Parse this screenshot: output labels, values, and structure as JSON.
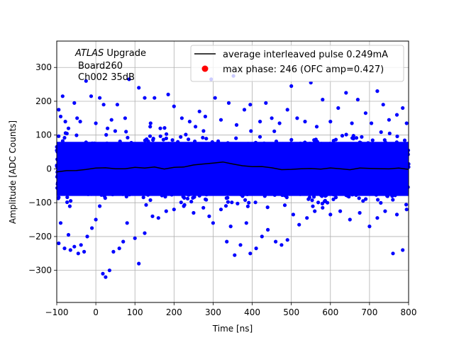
{
  "chart_data": {
    "type": "scatter",
    "title": "",
    "xlabel": "Time [ns]",
    "ylabel": "Amplitude [ADC Counts]",
    "xlim": [
      -100,
      800
    ],
    "ylim": [
      -395,
      378
    ],
    "xticks": [
      -100,
      0,
      100,
      200,
      300,
      400,
      500,
      600,
      700,
      800
    ],
    "yticks": [
      -300,
      -200,
      -100,
      0,
      100,
      200,
      300
    ],
    "xtick_labels": [
      "−100",
      "0",
      "100",
      "200",
      "300",
      "400",
      "500",
      "600",
      "700",
      "800"
    ],
    "ytick_labels": [
      "−300",
      "−200",
      "−100",
      "0",
      "100",
      "200",
      "300"
    ],
    "grid": true,
    "legend_position": "top-right",
    "annotation": {
      "line1_italic": "ATLAS",
      "line1_rest": " Upgrade",
      "line2": "Board260",
      "line3": "Ch002 35dB"
    },
    "colors": {
      "scatter": "#0000ff",
      "line": "#000000",
      "max_phase": "#ff0000"
    },
    "series": [
      {
        "name": "average interleaved pulse 0.249mA",
        "kind": "line",
        "x": [
          -100,
          -75,
          -50,
          -25,
          0,
          25,
          50,
          75,
          100,
          125,
          150,
          175,
          200,
          225,
          250,
          275,
          300,
          325,
          350,
          375,
          400,
          425,
          450,
          475,
          500,
          525,
          550,
          575,
          600,
          625,
          650,
          675,
          700,
          725,
          750,
          775,
          800
        ],
        "y": [
          -8,
          -6,
          -4,
          -2,
          0,
          2,
          1,
          3,
          4,
          5,
          3,
          2,
          4,
          6,
          9,
          13,
          18,
          19,
          16,
          12,
          8,
          4,
          1,
          0,
          -1,
          0,
          -1,
          -2,
          0,
          1,
          -1,
          0,
          1,
          0,
          1,
          0,
          1
        ]
      },
      {
        "name": "max phase: 246 (OFC amp=0.427)",
        "kind": "marker",
        "x": [],
        "y": []
      },
      {
        "name": "",
        "kind": "scatter",
        "x_range": [
          -100,
          800
        ],
        "core_y_range": [
          -80,
          80
        ],
        "outliers": [
          [
            -95,
            175
          ],
          [
            -90,
            155
          ],
          [
            -85,
            215
          ],
          [
            -78,
            140
          ],
          [
            -70,
            120
          ],
          [
            -55,
            195
          ],
          [
            -48,
            150
          ],
          [
            -40,
            140
          ],
          [
            -25,
            260
          ],
          [
            -12,
            215
          ],
          [
            0,
            135
          ],
          [
            10,
            210
          ],
          [
            20,
            190
          ],
          [
            30,
            120
          ],
          [
            40,
            145
          ],
          [
            55,
            190
          ],
          [
            75,
            150
          ],
          [
            85,
            265
          ],
          [
            110,
            240
          ],
          [
            125,
            210
          ],
          [
            140,
            135
          ],
          [
            150,
            210
          ],
          [
            165,
            120
          ],
          [
            185,
            220
          ],
          [
            200,
            185
          ],
          [
            220,
            150
          ],
          [
            240,
            140
          ],
          [
            255,
            125
          ],
          [
            265,
            170
          ],
          [
            280,
            155
          ],
          [
            295,
            265
          ],
          [
            305,
            210
          ],
          [
            320,
            145
          ],
          [
            340,
            195
          ],
          [
            352,
            275
          ],
          [
            360,
            130
          ],
          [
            380,
            175
          ],
          [
            395,
            190
          ],
          [
            420,
            140
          ],
          [
            435,
            195
          ],
          [
            450,
            150
          ],
          [
            470,
            135
          ],
          [
            490,
            175
          ],
          [
            500,
            245
          ],
          [
            515,
            150
          ],
          [
            535,
            140
          ],
          [
            550,
            255
          ],
          [
            565,
            125
          ],
          [
            580,
            205
          ],
          [
            600,
            140
          ],
          [
            620,
            180
          ],
          [
            640,
            225
          ],
          [
            655,
            135
          ],
          [
            670,
            205
          ],
          [
            690,
            165
          ],
          [
            705,
            135
          ],
          [
            720,
            230
          ],
          [
            735,
            190
          ],
          [
            750,
            145
          ],
          [
            770,
            160
          ],
          [
            785,
            180
          ],
          [
            795,
            135
          ],
          [
            -95,
            -220
          ],
          [
            -90,
            -160
          ],
          [
            -80,
            -235
          ],
          [
            -70,
            -195
          ],
          [
            -65,
            -240
          ],
          [
            -55,
            -230
          ],
          [
            -45,
            -250
          ],
          [
            -38,
            -225
          ],
          [
            -30,
            -245
          ],
          [
            -22,
            -200
          ],
          [
            -10,
            -175
          ],
          [
            0,
            -150
          ],
          [
            10,
            -110
          ],
          [
            18,
            -310
          ],
          [
            25,
            -320
          ],
          [
            35,
            -300
          ],
          [
            45,
            -245
          ],
          [
            60,
            -235
          ],
          [
            70,
            -215
          ],
          [
            80,
            -160
          ],
          [
            100,
            -205
          ],
          [
            110,
            -280
          ],
          [
            125,
            -190
          ],
          [
            145,
            -140
          ],
          [
            160,
            -145
          ],
          [
            180,
            -125
          ],
          [
            200,
            -120
          ],
          [
            225,
            -110
          ],
          [
            250,
            -130
          ],
          [
            275,
            -115
          ],
          [
            290,
            -140
          ],
          [
            300,
            -160
          ],
          [
            320,
            -120
          ],
          [
            335,
            -215
          ],
          [
            345,
            -170
          ],
          [
            355,
            -255
          ],
          [
            370,
            -225
          ],
          [
            385,
            -160
          ],
          [
            395,
            -250
          ],
          [
            410,
            -235
          ],
          [
            425,
            -200
          ],
          [
            440,
            -180
          ],
          [
            460,
            -215
          ],
          [
            475,
            -225
          ],
          [
            490,
            -210
          ],
          [
            505,
            -135
          ],
          [
            520,
            -165
          ],
          [
            540,
            -145
          ],
          [
            560,
            -125
          ],
          [
            580,
            -115
          ],
          [
            600,
            -135
          ],
          [
            625,
            -125
          ],
          [
            650,
            -150
          ],
          [
            675,
            -130
          ],
          [
            700,
            -170
          ],
          [
            720,
            -145
          ],
          [
            740,
            -125
          ],
          [
            760,
            -250
          ],
          [
            770,
            -135
          ],
          [
            785,
            -240
          ],
          [
            795,
            -120
          ]
        ]
      }
    ]
  }
}
